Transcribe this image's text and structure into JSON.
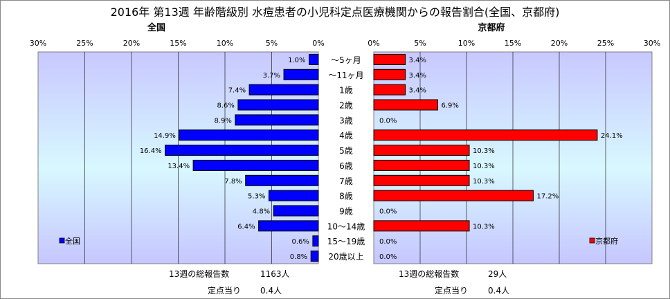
{
  "title": "2016年 第13週 年齢階級別 水痘患者の小児科定点医療機関からの報告割合(全国、京都府)",
  "chart_data": [
    {
      "type": "bar",
      "orientation": "horizontal",
      "direction": "right-to-left",
      "subtitle": "全国",
      "categories": [
        "～5ヶ月",
        "～11ヶ月",
        "1歳",
        "2歳",
        "3歳",
        "4歳",
        "5歳",
        "6歳",
        "7歳",
        "8歳",
        "9歳",
        "10～14歳",
        "15～19歳",
        "20歳以上"
      ],
      "series": [
        {
          "name": "全国",
          "values": [
            1.0,
            3.7,
            7.4,
            8.6,
            8.9,
            14.9,
            16.4,
            13.4,
            7.8,
            5.3,
            4.8,
            6.4,
            0.6,
            0.8
          ]
        }
      ],
      "value_labels": [
        "1.0%",
        "3.7%",
        "7.4%",
        "8.6%",
        "8.9%",
        "14.9%",
        "16.4%",
        "13.4%",
        "7.8%",
        "5.3%",
        "4.8%",
        "6.4%",
        "0.6%",
        "0.8%"
      ],
      "xlim": [
        0,
        30
      ],
      "ticks": [
        "30%",
        "25%",
        "20%",
        "15%",
        "10%",
        "5%",
        "0%"
      ],
      "color": "#0000ff",
      "legend_position": "bottom-left",
      "grid": true,
      "footer": {
        "total_label": "13週の総報告数",
        "total_value": "1163人",
        "per_label": "定点当り",
        "per_value": "0.4人"
      }
    },
    {
      "type": "bar",
      "orientation": "horizontal",
      "direction": "left-to-right",
      "subtitle": "京都府",
      "categories": [
        "～5ヶ月",
        "～11ヶ月",
        "1歳",
        "2歳",
        "3歳",
        "4歳",
        "5歳",
        "6歳",
        "7歳",
        "8歳",
        "9歳",
        "10～14歳",
        "15～19歳",
        "20歳以上"
      ],
      "series": [
        {
          "name": "京都府",
          "values": [
            3.4,
            3.4,
            3.4,
            6.9,
            0.0,
            24.1,
            10.3,
            10.3,
            10.3,
            17.2,
            0.0,
            10.3,
            0.0,
            0.0
          ]
        }
      ],
      "value_labels": [
        "3.4%",
        "3.4%",
        "3.4%",
        "6.9%",
        "0.0%",
        "24.1%",
        "10.3%",
        "10.3%",
        "10.3%",
        "17.2%",
        "0.0%",
        "10.3%",
        "0.0%",
        "0.0%"
      ],
      "xlim": [
        0,
        30
      ],
      "ticks": [
        "0%",
        "5%",
        "10%",
        "15%",
        "20%",
        "25%",
        "30%"
      ],
      "color": "#ff0000",
      "legend_position": "bottom-right",
      "grid": true,
      "footer": {
        "total_label": "13週の総報告数",
        "total_value": "29人",
        "per_label": "定点当り",
        "per_value": "0.4人"
      }
    }
  ]
}
